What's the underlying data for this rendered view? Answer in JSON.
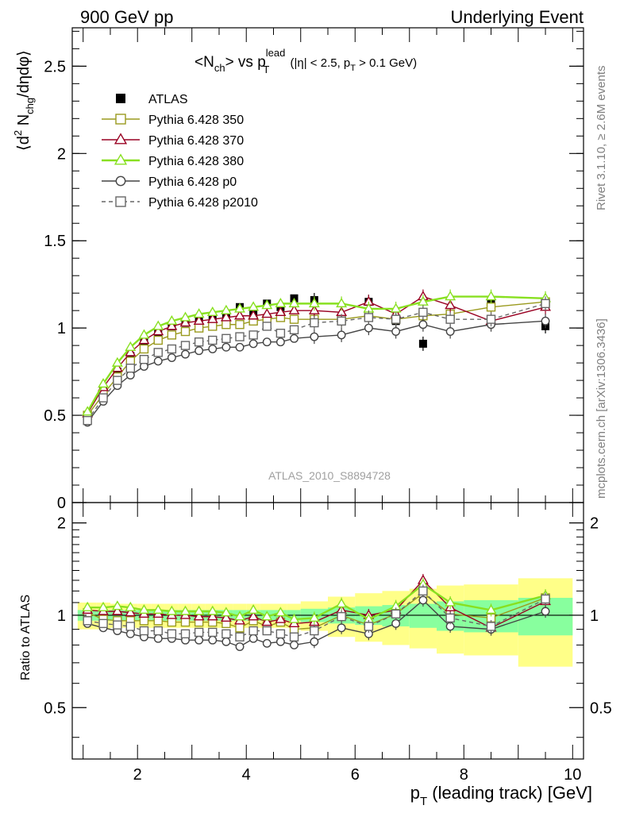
{
  "header": {
    "left": "900 GeV pp",
    "right": "Underlying Event"
  },
  "side_labels": {
    "rivet": "Rivet 3.1.10, ≥ 2.6M events",
    "mcplots": "mcplots.cern.ch [arXiv:1306.3436]"
  },
  "watermark": "ATLAS_2010_S8894728",
  "chart_data": [
    {
      "type": "line",
      "panel": "main",
      "title_parts": {
        "a": "<N",
        "a_sub": "ch",
        "b": "> vs p",
        "b_sup": "lead",
        "b_sub": "T",
        "c": " (|η| < 2.5, p",
        "c_sub": "T",
        "d": " > 0.1 GeV)"
      },
      "ylabel_parts": {
        "a": "⟨d",
        "a_sup": "2",
        "b": " N",
        "b_sub": "chg",
        "c": "/dηdφ⟩"
      },
      "xlim": [
        0.8,
        10.2
      ],
      "ylim": [
        0,
        2.72
      ],
      "y_ticks": [
        0,
        0.5,
        1,
        1.5,
        2,
        2.5
      ],
      "y_tick_labels": [
        "0",
        "0.5",
        "1",
        "1.5",
        "2",
        "2.5"
      ],
      "legend_position": "top-left",
      "x": [
        1.08,
        1.37,
        1.63,
        1.87,
        2.12,
        2.38,
        2.63,
        2.88,
        3.13,
        3.38,
        3.63,
        3.88,
        4.13,
        4.38,
        4.63,
        4.88,
        5.25,
        5.75,
        6.25,
        6.75,
        7.25,
        7.75,
        8.5,
        9.5
      ],
      "series": [
        {
          "name": "ATLAS",
          "color": "#000000",
          "marker": "filled-square",
          "line": "none",
          "values": [
            0.49,
            0.64,
            0.75,
            0.84,
            0.92,
            0.97,
            1.01,
            1.03,
            1.05,
            1.06,
            1.08,
            1.12,
            1.08,
            1.14,
            1.12,
            1.17,
            1.16,
            1.05,
            1.15,
            1.04,
            0.91,
            1.07,
            1.14,
            1.01
          ]
        },
        {
          "name": "Pythia 6.428 350",
          "color": "#9a9a1e",
          "marker": "open-square",
          "line": "solid",
          "values": [
            0.5,
            0.62,
            0.72,
            0.81,
            0.88,
            0.93,
            0.96,
            0.98,
            1.0,
            1.01,
            1.02,
            1.02,
            1.04,
            1.05,
            1.06,
            1.05,
            1.05,
            1.05,
            1.07,
            1.05,
            1.07,
            1.08,
            1.12,
            1.15
          ]
        },
        {
          "name": "Pythia 6.428 370",
          "color": "#990022",
          "marker": "open-triangle",
          "line": "solid",
          "values": [
            0.51,
            0.66,
            0.77,
            0.86,
            0.93,
            0.98,
            1.01,
            1.03,
            1.04,
            1.05,
            1.06,
            1.07,
            1.07,
            1.08,
            1.09,
            1.1,
            1.1,
            1.09,
            1.15,
            1.08,
            1.18,
            1.13,
            1.04,
            1.12
          ]
        },
        {
          "name": "Pythia 6.428 380",
          "color": "#88e020",
          "marker": "open-triangle",
          "line": "solid",
          "values": [
            0.52,
            0.68,
            0.8,
            0.89,
            0.96,
            1.01,
            1.04,
            1.06,
            1.08,
            1.09,
            1.1,
            1.11,
            1.12,
            1.13,
            1.14,
            1.14,
            1.14,
            1.14,
            1.11,
            1.11,
            1.15,
            1.18,
            1.18,
            1.17
          ]
        },
        {
          "name": "Pythia 6.428 p0",
          "color": "#444444",
          "marker": "open-circle",
          "line": "solid",
          "values": [
            0.46,
            0.58,
            0.67,
            0.73,
            0.78,
            0.81,
            0.83,
            0.85,
            0.87,
            0.88,
            0.89,
            0.89,
            0.91,
            0.92,
            0.92,
            0.94,
            0.95,
            0.96,
            1.0,
            0.98,
            1.02,
            0.98,
            1.02,
            1.04
          ]
        },
        {
          "name": "Pythia 6.428 p2010",
          "color": "#666666",
          "marker": "open-square",
          "line": "dashed",
          "values": [
            0.47,
            0.6,
            0.7,
            0.77,
            0.82,
            0.86,
            0.88,
            0.9,
            0.92,
            0.93,
            0.94,
            0.95,
            0.96,
            1.01,
            0.97,
            0.99,
            1.03,
            1.04,
            1.06,
            1.05,
            1.09,
            1.05,
            1.05,
            1.14
          ]
        }
      ]
    },
    {
      "type": "line",
      "panel": "ratio",
      "ylabel": "Ratio to ATLAS",
      "xlabel_parts": {
        "a": "p",
        "a_sub": "T",
        "b": " (leading track) [GeV]"
      },
      "xlim": [
        0.8,
        10.2
      ],
      "ylim": [
        0.34,
        2.33
      ],
      "y_log": true,
      "x_ticks": [
        2,
        4,
        6,
        8,
        10
      ],
      "x_tick_labels": [
        "2",
        "4",
        "6",
        "8",
        "10"
      ],
      "y_ticks": [
        0.5,
        1,
        2
      ],
      "y_tick_labels": [
        "0.5",
        "1",
        "2"
      ],
      "band_edges": [
        0.9,
        1.25,
        1.5,
        1.75,
        2.0,
        2.25,
        2.5,
        2.75,
        3.0,
        3.25,
        3.5,
        3.75,
        4.0,
        4.25,
        4.5,
        4.75,
        5.0,
        5.5,
        6.0,
        6.5,
        7.0,
        7.5,
        8.0,
        9.0,
        10.0
      ],
      "band_inner": [
        [
          0.96,
          1.04
        ],
        [
          0.96,
          1.04
        ],
        [
          0.96,
          1.04
        ],
        [
          0.96,
          1.04
        ],
        [
          0.96,
          1.04
        ],
        [
          0.96,
          1.04
        ],
        [
          0.96,
          1.04
        ],
        [
          0.96,
          1.04
        ],
        [
          0.96,
          1.04
        ],
        [
          0.96,
          1.04
        ],
        [
          0.96,
          1.04
        ],
        [
          0.96,
          1.04
        ],
        [
          0.96,
          1.04
        ],
        [
          0.96,
          1.04
        ],
        [
          0.96,
          1.04
        ],
        [
          0.96,
          1.04
        ],
        [
          0.95,
          1.05
        ],
        [
          0.94,
          1.06
        ],
        [
          0.93,
          1.07
        ],
        [
          0.92,
          1.08
        ],
        [
          0.91,
          1.09
        ],
        [
          0.89,
          1.11
        ],
        [
          0.88,
          1.12
        ],
        [
          0.86,
          1.14
        ]
      ],
      "band_outer": [
        [
          0.9,
          1.1
        ],
        [
          0.9,
          1.1
        ],
        [
          0.91,
          1.09
        ],
        [
          0.91,
          1.09
        ],
        [
          0.91,
          1.09
        ],
        [
          0.91,
          1.09
        ],
        [
          0.91,
          1.09
        ],
        [
          0.91,
          1.09
        ],
        [
          0.91,
          1.09
        ],
        [
          0.91,
          1.09
        ],
        [
          0.91,
          1.09
        ],
        [
          0.91,
          1.09
        ],
        [
          0.91,
          1.09
        ],
        [
          0.91,
          1.09
        ],
        [
          0.91,
          1.09
        ],
        [
          0.91,
          1.09
        ],
        [
          0.89,
          1.11
        ],
        [
          0.85,
          1.15
        ],
        [
          0.82,
          1.18
        ],
        [
          0.8,
          1.2
        ],
        [
          0.78,
          1.22
        ],
        [
          0.75,
          1.25
        ],
        [
          0.74,
          1.26
        ],
        [
          0.68,
          1.32
        ]
      ],
      "series_ratios": [
        {
          "name": "Pythia 6.428 350",
          "values": [
            1.02,
            0.97,
            0.96,
            0.96,
            0.96,
            0.96,
            0.95,
            0.95,
            0.95,
            0.95,
            0.94,
            0.91,
            0.96,
            0.92,
            0.95,
            0.9,
            0.91,
            1.0,
            0.93,
            1.01,
            1.18,
            1.01,
            0.98,
            1.14
          ]
        },
        {
          "name": "Pythia 6.428 370",
          "values": [
            1.04,
            1.03,
            1.03,
            1.02,
            1.01,
            1.01,
            1.0,
            1.0,
            0.99,
            0.99,
            0.98,
            0.96,
            0.99,
            0.95,
            0.97,
            0.94,
            0.95,
            1.04,
            1.0,
            1.04,
            1.3,
            1.06,
            0.91,
            1.11
          ]
        },
        {
          "name": "Pythia 6.428 380",
          "values": [
            1.06,
            1.06,
            1.07,
            1.06,
            1.04,
            1.04,
            1.03,
            1.03,
            1.03,
            1.03,
            1.02,
            0.99,
            1.04,
            0.99,
            1.02,
            0.97,
            0.98,
            1.09,
            0.97,
            1.07,
            1.26,
            1.1,
            1.04,
            1.16
          ]
        },
        {
          "name": "Pythia 6.428 p0",
          "values": [
            0.94,
            0.91,
            0.89,
            0.87,
            0.85,
            0.84,
            0.84,
            0.83,
            0.83,
            0.83,
            0.82,
            0.79,
            0.84,
            0.81,
            0.82,
            0.8,
            0.82,
            0.91,
            0.87,
            0.94,
            1.12,
            0.92,
            0.9,
            1.03
          ]
        },
        {
          "name": "Pythia 6.428 p2010",
          "values": [
            0.96,
            0.94,
            0.93,
            0.92,
            0.89,
            0.89,
            0.87,
            0.87,
            0.88,
            0.88,
            0.87,
            0.85,
            0.89,
            0.89,
            0.87,
            0.85,
            0.89,
            0.99,
            0.92,
            1.01,
            1.2,
            0.98,
            0.92,
            1.13
          ]
        }
      ]
    }
  ]
}
